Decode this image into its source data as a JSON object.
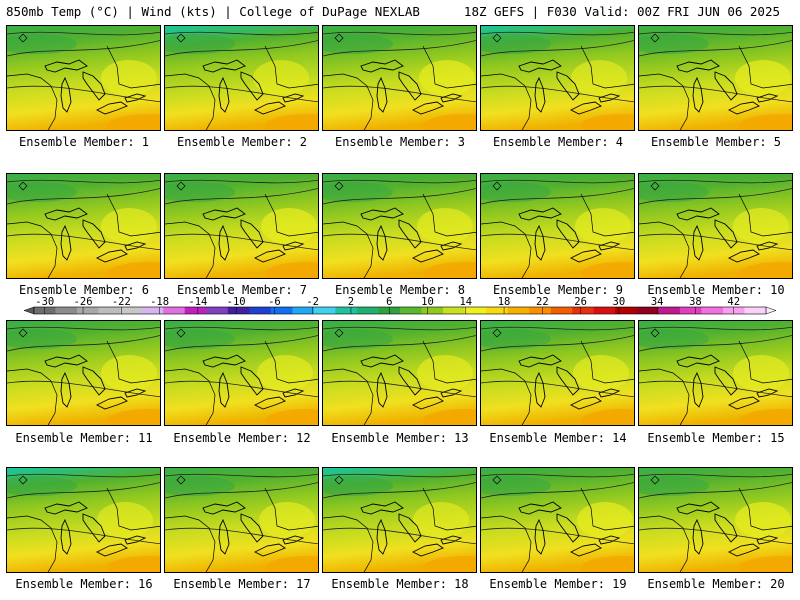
{
  "header": {
    "title_left": "850mb Temp (°C) | Wind (kts) | College of DuPage NEXLAB",
    "title_right": "18Z GEFS | F030 Valid: 00Z FRI JUN 06 2025"
  },
  "panels": [
    {
      "label": "Ensemble Member: 1",
      "warmth": 0.55
    },
    {
      "label": "Ensemble Member: 2",
      "warmth": 0.4
    },
    {
      "label": "Ensemble Member: 3",
      "warmth": 0.6
    },
    {
      "label": "Ensemble Member: 4",
      "warmth": 0.45
    },
    {
      "label": "Ensemble Member: 5",
      "warmth": 0.6
    },
    {
      "label": "Ensemble Member: 6",
      "warmth": 0.55
    },
    {
      "label": "Ensemble Member: 7",
      "warmth": 0.6
    },
    {
      "label": "Ensemble Member: 8",
      "warmth": 0.55
    },
    {
      "label": "Ensemble Member: 9",
      "warmth": 0.55
    },
    {
      "label": "Ensemble Member: 10",
      "warmth": 0.55
    },
    {
      "label": "Ensemble Member: 11",
      "warmth": 0.55
    },
    {
      "label": "Ensemble Member: 12",
      "warmth": 0.5
    },
    {
      "label": "Ensemble Member: 13",
      "warmth": 0.55
    },
    {
      "label": "Ensemble Member: 14",
      "warmth": 0.5
    },
    {
      "label": "Ensemble Member: 15",
      "warmth": 0.55
    },
    {
      "label": "Ensemble Member: 16",
      "warmth": 0.45
    },
    {
      "label": "Ensemble Member: 17",
      "warmth": 0.55
    },
    {
      "label": "Ensemble Member: 18",
      "warmth": 0.45
    },
    {
      "label": "Ensemble Member: 19",
      "warmth": 0.6
    },
    {
      "label": "Ensemble Member: 20",
      "warmth": 0.6
    }
  ],
  "colorbar": {
    "ticks": [
      "-30",
      "-26",
      "-22",
      "-18",
      "-14",
      "-10",
      "-6",
      "-2",
      "2",
      "6",
      "10",
      "14",
      "18",
      "22",
      "26",
      "30",
      "34",
      "38",
      "42"
    ],
    "colors": [
      "#6e6e6e",
      "#8c8c8c",
      "#a8a8a8",
      "#bdbdbd",
      "#c8c8c8",
      "#d8b4f0",
      "#e070e0",
      "#c020c0",
      "#8040c0",
      "#4020a0",
      "#2040d0",
      "#1070f0",
      "#20a8f0",
      "#40d0f0",
      "#20c0a0",
      "#20b070",
      "#30a040",
      "#58b830",
      "#90c820",
      "#c8e020",
      "#f0f020",
      "#f8d810",
      "#f8b000",
      "#f89000",
      "#f06000",
      "#e83010",
      "#d81010",
      "#b00000",
      "#900020",
      "#c01890",
      "#e040c0",
      "#f070e0",
      "#f8a0f0",
      "#fcd0f8"
    ]
  }
}
